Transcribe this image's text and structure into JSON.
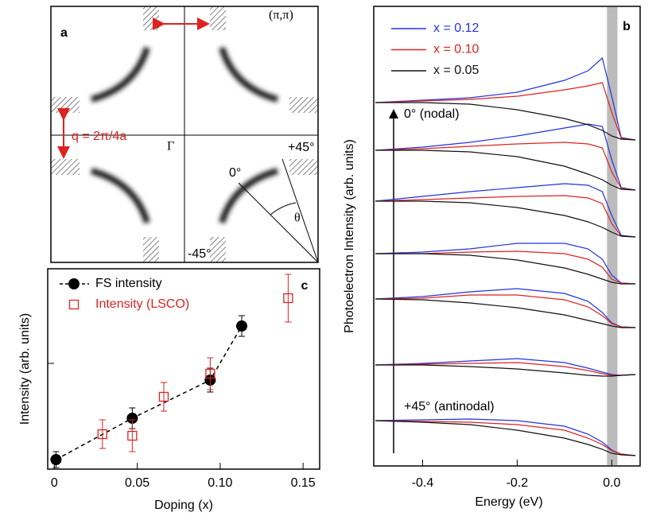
{
  "chart_data": [
    {
      "type": "diagram",
      "panel_label": "a",
      "corner_label": "(π,π)",
      "q_label": "q = 2π/4a",
      "center_label": "Γ",
      "angle_labels": [
        "+45°",
        "0°",
        "-45°"
      ],
      "theta_label": "θ"
    },
    {
      "type": "line",
      "panel_label": "b",
      "xlabel": "Energy (eV)",
      "ylabel": "Photoelectron Intensity (arb. units)",
      "annotations": [
        "0° (nodal)",
        "+45° (antinodal)"
      ],
      "x": [
        -0.5,
        -0.4,
        -0.3,
        -0.2,
        -0.1,
        -0.05,
        -0.02,
        0,
        0.02,
        0.05
      ],
      "xlim": [
        -0.5,
        0.06
      ],
      "xticks": [
        -0.4,
        -0.2,
        {
          "value": 0,
          "label": "0.0"
        }
      ],
      "ylim": [
        0,
        578
      ],
      "shaded_region": [
        -0.01,
        0.012
      ],
      "series": [
        {
          "name": "x = 0.12",
          "color": "#2233dd",
          "values": [
            [
              457,
              460,
              463,
              470,
              485,
              497,
              513,
              465,
              413,
              410
            ],
            [
              397,
              401,
              407,
              415,
              425,
              430,
              427,
              385,
              350,
              347
            ],
            [
              333,
              339,
              345,
              350,
              355,
              353,
              345,
              315,
              290,
              288
            ],
            [
              267,
              269,
              273,
              280,
              280,
              273,
              260,
              240,
              230,
              229
            ],
            [
              210,
              213,
              219,
              223,
              217,
              207,
              193,
              180,
              175,
              174
            ],
            [
              127,
              129,
              132,
              135,
              130,
              123,
              118,
              115,
              114,
              115
            ],
            [
              57,
              58,
              59,
              57,
              50,
              40,
              30,
              20,
              15,
              13
            ]
          ]
        },
        {
          "name": "x = 0.10",
          "color": "#dd2222",
          "values": [
            [
              457,
              459,
              461,
              465,
              473,
              478,
              482,
              445,
              412,
              410
            ],
            [
              397,
              399,
              402,
              405,
              407,
              405,
              400,
              370,
              349,
              347
            ],
            [
              333,
              335,
              337,
              339,
              340,
              337,
              330,
              305,
              289,
              288
            ],
            [
              267,
              267,
              269,
              270,
              267,
              260,
              250,
              235,
              230,
              229
            ],
            [
              210,
              211,
              215,
              215,
              209,
              200,
              189,
              179,
              175,
              174
            ],
            [
              127,
              128,
              129,
              130,
              125,
              120,
              116,
              114,
              114,
              115
            ],
            [
              57,
              56,
              55,
              52,
              45,
              35,
              27,
              19,
              15,
              13
            ]
          ]
        },
        {
          "name": "x = 0.05",
          "color": "#111111",
          "values": [
            [
              457,
              457,
              455,
              448,
              437,
              429,
              422,
              415,
              411,
              410
            ],
            [
              397,
              397,
              395,
              389,
              377,
              367,
              360,
              353,
              348,
              347
            ],
            [
              333,
              333,
              331,
              325,
              315,
              307,
              300,
              294,
              289,
              288
            ],
            [
              267,
              267,
              265,
              259,
              249,
              241,
              235,
              231,
              229,
              229
            ],
            [
              210,
              209,
              205,
              199,
              190,
              183,
              179,
              176,
              174,
              174
            ],
            [
              127,
              127,
              125,
              122,
              117,
              114,
              113,
              113,
              114,
              115
            ],
            [
              57,
              55,
              52,
              45,
              35,
              27,
              21,
              16,
              14,
              13
            ]
          ]
        }
      ]
    },
    {
      "type": "scatter",
      "panel_label": "c",
      "xlabel": "Doping (x)",
      "ylabel": "Intensity (arb. units)",
      "xlim": [
        -0.004,
        0.16
      ],
      "xticks": [
        0,
        0.05,
        {
          "value": 0.1,
          "label": "0.10"
        },
        0.15
      ],
      "ylim": [
        0,
        252
      ],
      "yticks": [
        133
      ],
      "series": [
        {
          "name": "FS intensity",
          "color": "#000000",
          "marker": "circle",
          "line": "dashed",
          "x": [
            0.001,
            0.047,
            0.094,
            0.113
          ],
          "values": [
            12,
            64,
            112,
            180
          ],
          "errors": [
            10,
            13,
            15,
            13
          ]
        },
        {
          "name": "Intensity (LSCO)",
          "color": "#dd2222",
          "marker": "square",
          "x": [
            0.029,
            0.047,
            0.066,
            0.094,
            0.141
          ],
          "values": [
            44,
            42,
            91,
            120,
            215
          ],
          "errors": [
            18,
            20,
            18,
            20,
            30
          ]
        }
      ]
    }
  ]
}
